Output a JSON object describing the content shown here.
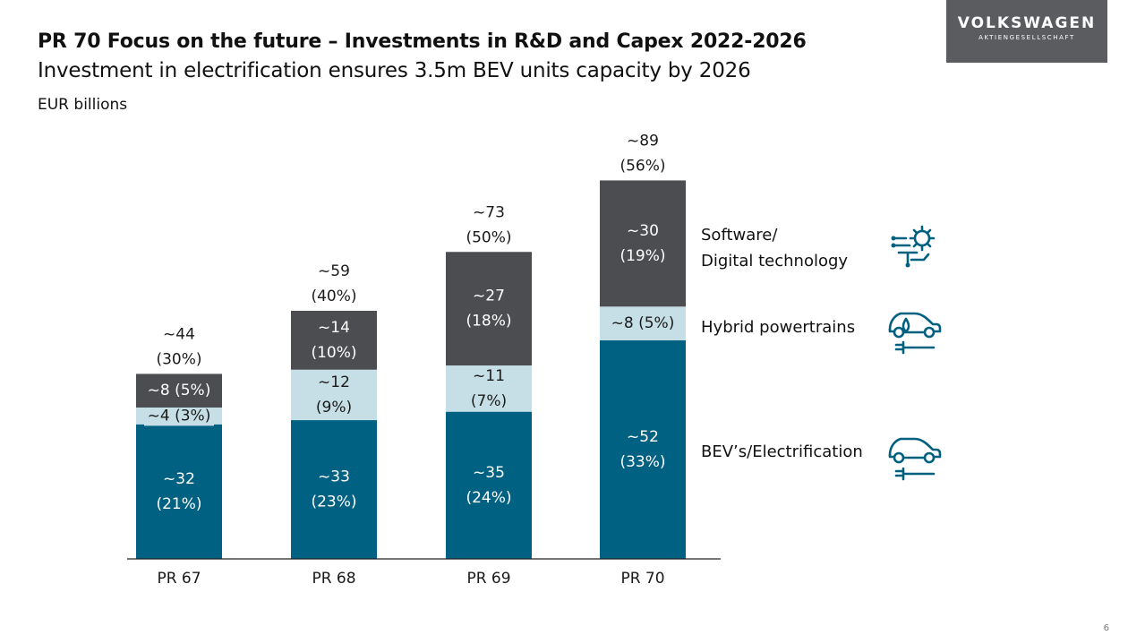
{
  "header": {
    "title": "PR 70 Focus on the future –  Investments in R&D and Capex 2022-2026",
    "subtitle": "Investment in electrification ensures 3.5m BEV units capacity by 2026",
    "unit_label": "EUR billions"
  },
  "logo": {
    "name": "VOLKSWAGEN",
    "tagline": "AKTIENGESELLSCHAFT"
  },
  "colors": {
    "bev": "#006182",
    "hybrid": "#c6dfe6",
    "software": "#4b4d51",
    "axis": "#222222",
    "icon": "#00607f"
  },
  "chart_data": {
    "type": "bar",
    "stacked": true,
    "categories": [
      "PR 67",
      "PR 68",
      "PR 69",
      "PR 70"
    ],
    "ylim": [
      0,
      92
    ],
    "series": [
      {
        "name": "BEV's/Electrification",
        "key": "bev",
        "values": [
          32,
          33,
          35,
          52
        ],
        "labels": [
          [
            "~32",
            "(21%)"
          ],
          [
            "~33",
            "(23%)"
          ],
          [
            "~35",
            "(24%)"
          ],
          [
            "~52",
            "(33%)"
          ]
        ]
      },
      {
        "name": "Hybrid powertrains",
        "key": "hybrid",
        "values": [
          4,
          12,
          11,
          8
        ],
        "labels": [
          [
            "~4 (3%)"
          ],
          [
            "~12",
            "(9%)"
          ],
          [
            "~11",
            "(7%)"
          ],
          [
            "~8 (5%)"
          ]
        ]
      },
      {
        "name": "Software/ Digital technology",
        "key": "software",
        "values": [
          8,
          14,
          27,
          30
        ],
        "labels": [
          [
            "~8 (5%)"
          ],
          [
            "~14",
            "(10%)"
          ],
          [
            "~27",
            "(18%)"
          ],
          [
            "~30",
            "(19%)"
          ]
        ]
      }
    ],
    "totals": [
      [
        "~44",
        "(30%)"
      ],
      [
        "~59",
        "(40%)"
      ],
      [
        "~73",
        "(50%)"
      ],
      [
        "~89",
        "(56%)"
      ]
    ]
  },
  "legend": [
    {
      "lines": [
        "Software/",
        "Digital technology"
      ],
      "icon": "gear-circuit-icon"
    },
    {
      "lines": [
        "Hybrid powertrains"
      ],
      "icon": "hybrid-car-icon"
    },
    {
      "lines": [
        "BEV’s/Electrification"
      ],
      "icon": "electric-car-icon"
    }
  ],
  "page_number": "6"
}
